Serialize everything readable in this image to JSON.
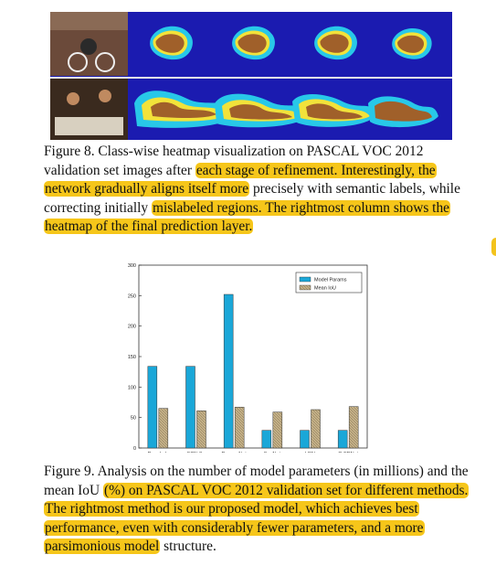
{
  "figure8": {
    "caption_parts": [
      {
        "text": "Figure 8. Class-wise heatmap visualization on PASCAL VOC 2012 validation set images after ",
        "hl": false
      },
      {
        "text": "each stage of refinement. Interestingly, the network gradually aligns itself more",
        "hl": true
      },
      {
        "text": " precisely with semantic labels, while correcting initially ",
        "hl": false
      },
      {
        "text": "mislabeled regions. The rightmost column shows the heatmap of the final prediction layer.",
        "hl": true
      }
    ],
    "colors": {
      "background": "#1b1bb0",
      "outer": "#28c8e8",
      "mid": "#f2e23a",
      "core": "#a0602a"
    }
  },
  "figure9": {
    "caption_parts": [
      {
        "text": "Figure 9. Analysis on the number of model parameters (in millions) and the mean IoU ",
        "hl": false
      },
      {
        "text": "(%) on PASCAL VOC 2012 validation set for different methods. The rightmost method is our proposed model, which achieves best performance, even with considerably fewer parameters, and a more parsimonious model",
        "hl": true
      },
      {
        "text": " structure.",
        "hl": false
      }
    ]
  },
  "chart_data": {
    "type": "bar",
    "categories": [
      "DeepLab",
      "FCN-8s",
      "DeconvNet",
      "SegNet",
      "LRN",
      "G-FRNet"
    ],
    "series": [
      {
        "name": "Model Params",
        "values": [
          134,
          134,
          252,
          29,
          29,
          29
        ],
        "color": "#1aa7d8"
      },
      {
        "name": "Mean IoU",
        "values": [
          65,
          61,
          67,
          59,
          63,
          68
        ],
        "color": "#c8b48a"
      }
    ],
    "yticks": [
      0,
      50,
      100,
      150,
      200,
      250,
      300
    ],
    "ylim": [
      0,
      300
    ],
    "legend_position": "top-right"
  },
  "highlight_color": "#f6c61a"
}
